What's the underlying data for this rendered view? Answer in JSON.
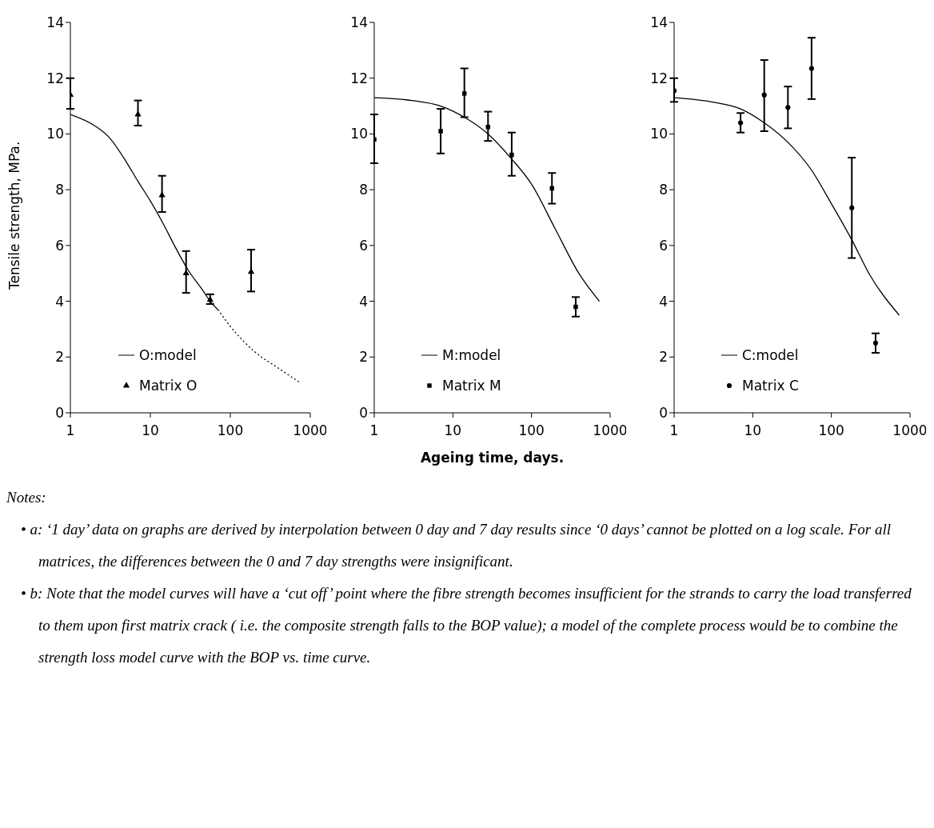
{
  "chart_data": [
    {
      "type": "scatter",
      "ylabel": "Tensile strength, MPa.",
      "log": "x",
      "xlim": [
        1,
        1000
      ],
      "xticks": [
        1,
        10,
        100,
        1000
      ],
      "ylim": [
        0,
        14
      ],
      "yticks": [
        0,
        2,
        4,
        6,
        8,
        10,
        12,
        14
      ],
      "grid": false,
      "legend": "bottom left",
      "series": [
        {
          "name": "O:model",
          "type": "line",
          "color": "#000000",
          "line_style": "solid",
          "x": [
            1,
            2,
            3,
            5,
            7,
            10,
            15,
            20,
            30,
            45,
            56,
            70
          ],
          "values": [
            10.7,
            10.3,
            9.9,
            9.0,
            8.3,
            7.6,
            6.7,
            6.0,
            5.1,
            4.4,
            4.0,
            3.7
          ]
        },
        {
          "type": "line",
          "color": "#000000",
          "line_style": "dotted",
          "x": [
            70,
            100,
            200,
            400,
            730
          ],
          "values": [
            3.7,
            3.1,
            2.2,
            1.6,
            1.1
          ]
        },
        {
          "name": "Matrix O",
          "color": "#000000",
          "marker": "triangle",
          "x": [
            1,
            7,
            14,
            28,
            56,
            182
          ],
          "values": [
            11.4,
            10.7,
            7.8,
            5.0,
            4.05,
            5.05
          ],
          "errors": [
            [
              10.9,
              12.0
            ],
            [
              10.3,
              11.2
            ],
            [
              7.2,
              8.5
            ],
            [
              4.3,
              5.8
            ],
            [
              3.9,
              4.25
            ],
            [
              4.35,
              5.85
            ]
          ]
        }
      ],
      "annotations": [
        "Notes:",
        "• a: ‘1 day’ data on graphs are derived by interpolation between 0 day and 7 day results since ‘0 days’ cannot be plotted on a log scale. For all matrices, the differences between the 0 and 7 day strengths were insignificant.",
        "• b: Note that the model curves will have a ‘cut off’ point where the fibre strength becomes insufficient for the strands to carry the load transferred to them upon first matrix crack ( i.e. the composite strength falls to the BOP value); a model of the complete process would be to combine the strength loss model curve with the BOP vs. time curve."
      ]
    },
    {
      "type": "scatter",
      "xlabel": "Ageing time, days.",
      "log": "x",
      "xlim": [
        1,
        1000
      ],
      "xticks": [
        1,
        10,
        100,
        1000
      ],
      "ylim": [
        0,
        14
      ],
      "yticks": [
        0,
        2,
        4,
        6,
        8,
        10,
        12,
        14
      ],
      "grid": false,
      "legend": "bottom left",
      "series": [
        {
          "name": "M:model",
          "type": "line",
          "color": "#000000",
          "line_style": "solid",
          "x": [
            1,
            3,
            7,
            14,
            28,
            56,
            100,
            200,
            400,
            730
          ],
          "values": [
            11.3,
            11.2,
            11.0,
            10.6,
            10.0,
            9.1,
            8.2,
            6.6,
            5.0,
            4.0
          ]
        },
        {
          "name": "Matrix M",
          "color": "#000000",
          "marker": "square",
          "x": [
            1,
            7,
            14,
            28,
            56,
            182,
            365
          ],
          "values": [
            9.8,
            10.1,
            11.45,
            10.25,
            9.25,
            8.05,
            3.8
          ],
          "errors": [
            [
              8.95,
              10.7
            ],
            [
              9.3,
              10.9
            ],
            [
              10.6,
              12.35
            ],
            [
              9.75,
              10.8
            ],
            [
              8.5,
              10.05
            ],
            [
              7.5,
              8.6
            ],
            [
              3.45,
              4.15
            ]
          ]
        }
      ]
    },
    {
      "type": "scatter",
      "log": "x",
      "xlim": [
        1,
        1000
      ],
      "xticks": [
        1,
        10,
        100,
        1000
      ],
      "ylim": [
        0,
        14
      ],
      "yticks": [
        0,
        2,
        4,
        6,
        8,
        10,
        12,
        14
      ],
      "grid": false,
      "legend": "bottom left",
      "series": [
        {
          "name": "C:model",
          "type": "line",
          "color": "#000000",
          "line_style": "solid",
          "x": [
            1,
            3,
            7,
            14,
            28,
            56,
            100,
            182,
            300,
            730
          ],
          "values": [
            11.3,
            11.15,
            10.9,
            10.4,
            9.7,
            8.7,
            7.5,
            6.2,
            5.0,
            3.5
          ]
        },
        {
          "name": "Matrix C",
          "color": "#000000",
          "marker": "circle",
          "x": [
            1,
            7,
            14,
            28,
            56,
            182,
            365
          ],
          "values": [
            11.55,
            10.4,
            11.4,
            10.95,
            12.35,
            7.35,
            2.5
          ],
          "errors": [
            [
              11.15,
              12.0
            ],
            [
              10.05,
              10.75
            ],
            [
              10.1,
              12.65
            ],
            [
              10.2,
              11.7
            ],
            [
              11.25,
              13.45
            ],
            [
              5.55,
              9.15
            ],
            [
              2.15,
              2.85
            ]
          ]
        }
      ]
    }
  ]
}
